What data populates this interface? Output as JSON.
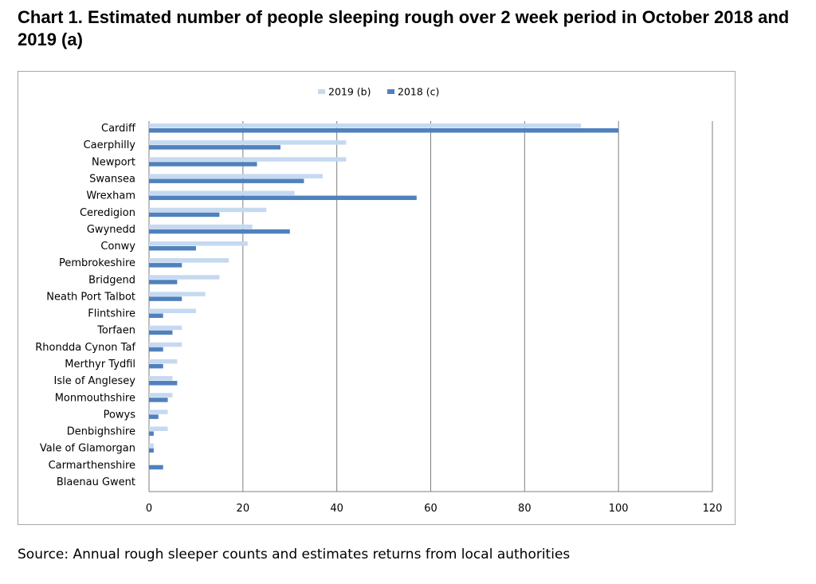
{
  "title": "Chart 1. Estimated number of people sleeping rough over 2 week period in October 2018 and 2019 (a)",
  "source": "Source: Annual rough sleeper counts and estimates returns from local authorities",
  "colors": {
    "series_2019": "#c5d9f1",
    "series_2018": "#4f81bd",
    "grid": "#7f7f7f",
    "frame": "#a6a6a6"
  },
  "chart_data": {
    "type": "bar",
    "orientation": "horizontal",
    "categories": [
      "Cardiff",
      "Caerphilly",
      "Newport",
      "Swansea",
      "Wrexham",
      "Ceredigion",
      "Gwynedd",
      "Conwy",
      "Pembrokeshire",
      "Bridgend",
      "Neath Port Talbot",
      "Flintshire",
      "Torfaen",
      "Rhondda Cynon Taf",
      "Merthyr Tydfil",
      "Isle of Anglesey",
      "Monmouthshire",
      "Powys",
      "Denbighshire",
      "Vale of Glamorgan",
      "Carmarthenshire",
      "Blaenau Gwent"
    ],
    "series": [
      {
        "name": "2019 (b)",
        "color": "#c5d9f1",
        "values": [
          92,
          42,
          42,
          37,
          31,
          25,
          22,
          21,
          17,
          15,
          12,
          10,
          7,
          7,
          6,
          5,
          5,
          4,
          4,
          1,
          0,
          0
        ]
      },
      {
        "name": "2018 (c)",
        "color": "#4f81bd",
        "values": [
          100,
          28,
          23,
          33,
          57,
          15,
          30,
          10,
          7,
          6,
          7,
          3,
          5,
          3,
          3,
          6,
          4,
          2,
          1,
          1,
          3,
          0
        ]
      }
    ],
    "xlim": [
      0,
      120
    ],
    "xticks": [
      "0",
      "20",
      "40",
      "60",
      "80",
      "100",
      "120"
    ],
    "grid": true,
    "legend": "top"
  }
}
